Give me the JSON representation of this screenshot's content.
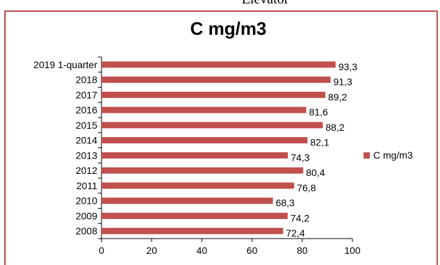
{
  "top_caption": "Elevator",
  "colors": {
    "bar": "#c0504d",
    "frame": "#c0504d",
    "axis": "#000000"
  },
  "chart_data": {
    "type": "bar",
    "orientation": "horizontal",
    "title": "C mg/m3",
    "categories": [
      "2019 1-quarter",
      "2018",
      "2017",
      "2016",
      "2015",
      "2014",
      "2013",
      "2012",
      "2011",
      "2010",
      "2009",
      "2008"
    ],
    "series": [
      {
        "name": "C mg/m3",
        "values": [
          93.3,
          91.3,
          89.2,
          81.6,
          88.2,
          82.1,
          74.3,
          80.4,
          76.8,
          68.3,
          74.2,
          72.4
        ],
        "labels": [
          "93,3",
          "91,3",
          "89,2",
          "81,6",
          "88,2",
          "82,1",
          "74,3",
          "80,4",
          "76,8",
          "68,3",
          "74,2",
          "72,4"
        ]
      }
    ],
    "xlim": [
      0,
      100
    ],
    "xticks": [
      "0",
      "20",
      "40",
      "60",
      "80",
      "100"
    ],
    "grid": false,
    "legend_position": "right"
  }
}
